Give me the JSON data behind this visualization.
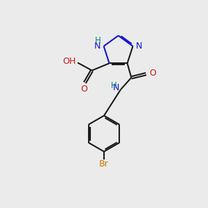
{
  "background_color": "#ebebeb",
  "bond_color": "#1a1a1a",
  "N_color": "#1414cc",
  "O_color": "#cc1414",
  "Br_color": "#cc7700",
  "H_color": "#008080",
  "lw": 1.5,
  "xlim": [
    0,
    10
  ],
  "ylim": [
    0,
    10
  ]
}
